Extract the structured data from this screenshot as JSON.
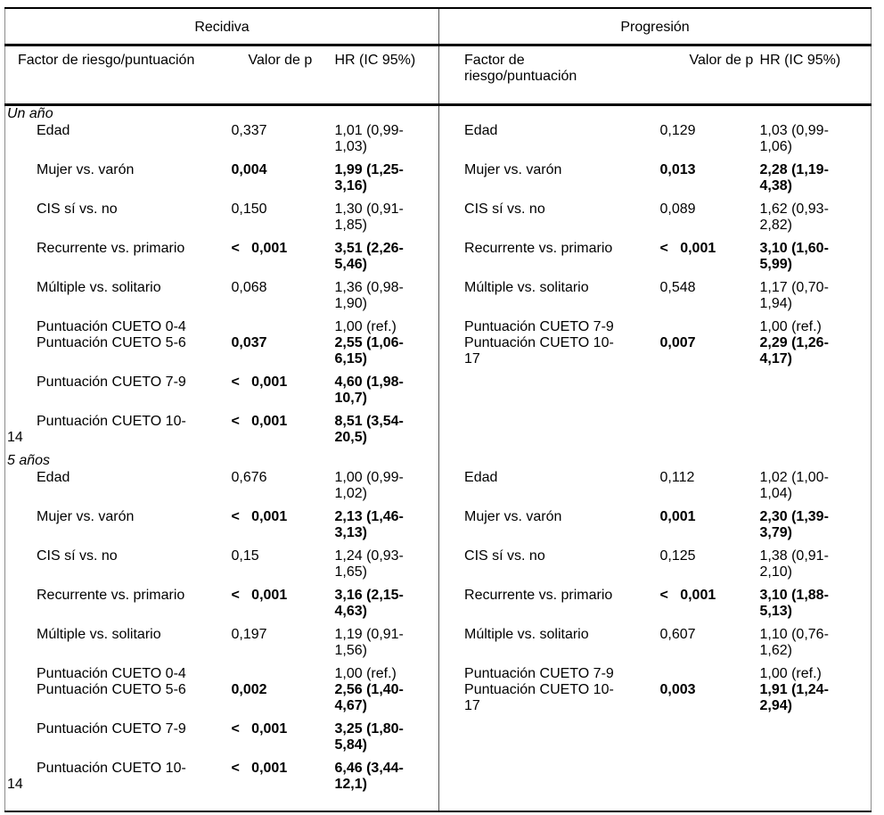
{
  "palette": {
    "rule_color": "#000000",
    "side_border_color": "#8c8c8c",
    "text_color": "#000000",
    "background": "#ffffff"
  },
  "table": {
    "group_headers": [
      "Recidiva",
      "Progresión"
    ],
    "col_headers": [
      "Factor de riesgo/puntuación",
      "Valor de p",
      "HR (IC 95%)",
      "Factor de\nriesgo/puntuación",
      "Valor de p",
      "HR (IC 95%)"
    ],
    "sections": [
      {
        "label": "Un año",
        "rows": [
          {
            "cells": [
              "Edad",
              "0,337",
              "1,01 (0,99-\n1,03)",
              "Edad",
              "0,129",
              "1,03 (0,99-\n1,06)"
            ],
            "bold_left": false,
            "bold_right": false
          },
          {
            "cells": [
              "Mujer vs. varón",
              "0,004",
              "1,99 (1,25-\n3,16)",
              "Mujer vs. varón",
              "0,013",
              "2,28 (1,19-\n4,38)"
            ],
            "bold_left": true,
            "bold_right": true
          },
          {
            "cells": [
              "CIS sí vs. no",
              "0,150",
              "1,30 (0,91-\n1,85)",
              "CIS sí vs. no",
              "0,089",
              "1,62 (0,93-\n2,82)"
            ],
            "bold_left": false,
            "bold_right": false
          },
          {
            "cells": [
              "Recurrente vs. primario",
              "<   0,001",
              "3,51 (2,26-\n5,46)",
              "Recurrente vs. primario",
              "<   0,001",
              "3,10 (1,60-\n5,99)"
            ],
            "bold_left": true,
            "bold_right": true
          },
          {
            "cells": [
              "Múltiple vs. solitario",
              "0,068",
              "1,36 (0,98-\n1,90)",
              "Múltiple vs. solitario",
              "0,548",
              "1,17 (0,70-\n1,94)"
            ],
            "bold_left": false,
            "bold_right": false
          },
          {
            "cells": [
              "Puntuación CUETO 0-4",
              "",
              "1,00 (ref.)",
              "Puntuación CUETO 7-9",
              "",
              "1,00 (ref.)"
            ],
            "bold_left": false,
            "bold_right": false
          },
          {
            "cells": [
              "Puntuación CUETO 5-6",
              "0,037",
              "2,55 (1,06-\n6,15)",
              "Puntuación CUETO 10-\n17",
              "0,007",
              "2,29 (1,26-\n4,17)"
            ],
            "bold_left": true,
            "bold_right": true
          },
          {
            "cells": [
              "Puntuación CUETO 7-9",
              "<   0,001",
              "4,60 (1,98-\n10,7)",
              "",
              "",
              ""
            ],
            "bold_left": true,
            "bold_right": false
          },
          {
            "cells": [
              "Puntuación CUETO 10-\n14",
              "<   0,001",
              "8,51 (3,54-\n20,5)",
              "",
              "",
              ""
            ],
            "bold_left": true,
            "bold_right": false
          }
        ]
      },
      {
        "label": "5 años",
        "rows": [
          {
            "cells": [
              "Edad",
              "0,676",
              "1,00 (0,99-\n1,02)",
              "Edad",
              "0,112",
              "1,02 (1,00-\n1,04)"
            ],
            "bold_left": false,
            "bold_right": false
          },
          {
            "cells": [
              "Mujer vs. varón",
              "<   0,001",
              "2,13 (1,46-\n3,13)",
              "Mujer vs. varón",
              "0,001",
              "2,30 (1,39-\n3,79)"
            ],
            "bold_left": true,
            "bold_right": true
          },
          {
            "cells": [
              "CIS sí vs. no",
              "0,15",
              "1,24 (0,93-\n1,65)",
              "CIS sí vs. no",
              "0,125",
              "1,38 (0,91-\n2,10)"
            ],
            "bold_left": false,
            "bold_right": false
          },
          {
            "cells": [
              "Recurrente vs. primario",
              "<   0,001",
              "3,16 (2,15-\n4,63)",
              "Recurrente vs. primario",
              "<   0,001",
              "3,10 (1,88-\n5,13)"
            ],
            "bold_left": true,
            "bold_right": true
          },
          {
            "cells": [
              "Múltiple vs. solitario",
              "0,197",
              "1,19 (0,91-\n1,56)",
              "Múltiple vs. solitario",
              "0,607",
              "1,10 (0,76-\n1,62)"
            ],
            "bold_left": false,
            "bold_right": false
          },
          {
            "cells": [
              "Puntuación CUETO 0-4",
              "",
              "1,00 (ref.)",
              "Puntuación CUETO 7-9",
              "",
              "1,00 (ref.)"
            ],
            "bold_left": false,
            "bold_right": false
          },
          {
            "cells": [
              "Puntuación CUETO 5-6",
              "0,002",
              "2,56 (1,40-\n4,67)",
              "Puntuación CUETO 10-\n17",
              "0,003",
              "1,91 (1,24-\n2,94)"
            ],
            "bold_left": true,
            "bold_right": true
          },
          {
            "cells": [
              "Puntuación CUETO 7-9",
              "<   0,001",
              "3,25 (1,80-\n5,84)",
              "",
              "",
              ""
            ],
            "bold_left": true,
            "bold_right": false
          },
          {
            "cells": [
              "Puntuación CUETO 10-\n14",
              "<   0,001",
              "6,46 (3,44-\n12,1)",
              "",
              "",
              ""
            ],
            "bold_left": true,
            "bold_right": false
          }
        ]
      }
    ]
  }
}
